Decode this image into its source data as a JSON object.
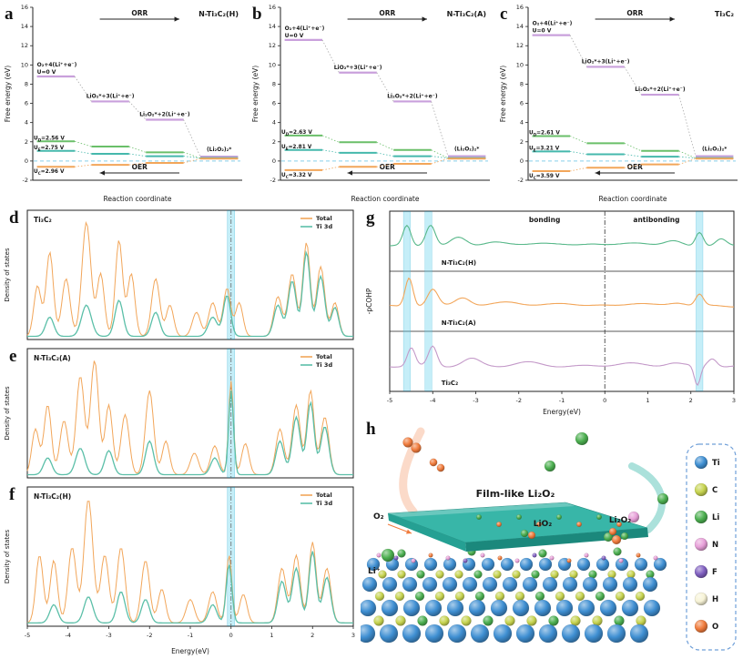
{
  "figure": {
    "letters": [
      "a",
      "b",
      "c",
      "d",
      "e",
      "f",
      "g",
      "h"
    ]
  },
  "chart_data": [
    {
      "panel": "a",
      "type": "step",
      "title": "N-Ti₃C₂(H)",
      "xlabel": "Reaction coordinate",
      "ylabel": "Free energy (eV)",
      "ylim": [
        -2,
        16
      ],
      "yticks": [
        -2,
        0,
        2,
        4,
        6,
        8,
        10,
        12,
        14,
        16
      ],
      "arrows": {
        "top": "ORR",
        "bottom": "OER"
      },
      "states": [
        "O₂+4(Li⁺+e⁻)",
        "LiO₂*+3(Li⁺+e⁻)",
        "Li₂O₂*+2(Li⁺+e⁻)",
        "(Li₂O₂)₂*"
      ],
      "u0_label": "U=0 V",
      "u0": {
        "color": "#c9a0dc",
        "levels": [
          8.8,
          6.2,
          4.3,
          0.45
        ]
      },
      "potentials": [
        {
          "label": "U_D=2.56 V",
          "color": "#6abf69",
          "levels": [
            2.05,
            1.5,
            0.9,
            0.3
          ]
        },
        {
          "label": "U_E=2.75 V",
          "color": "#45b8ac",
          "levels": [
            1.05,
            0.75,
            0.5,
            0.3
          ]
        },
        {
          "label": "U_C=2.96 V",
          "color": "#f2a65a",
          "levels": [
            -0.6,
            -0.4,
            -0.2,
            0.25
          ]
        }
      ],
      "baseline_color": "#9fd8ef"
    },
    {
      "panel": "b",
      "type": "step",
      "title": "N-Ti₃C₂(A)",
      "xlabel": "Reaction coordinate",
      "ylabel": "Free energy (eV)",
      "ylim": [
        -2,
        16
      ],
      "yticks": [
        -2,
        0,
        2,
        4,
        6,
        8,
        10,
        12,
        14,
        16
      ],
      "arrows": {
        "top": "ORR",
        "bottom": "OER"
      },
      "states": [
        "O₂+4(Li⁺+e⁻)",
        "LiO₂*+3(Li⁺+e⁻)",
        "Li₂O₂*+2(Li⁺+e⁻)",
        "(Li₂O₂)₂*"
      ],
      "u0_label": "U=0 V",
      "u0": {
        "color": "#c9a0dc",
        "levels": [
          12.6,
          9.2,
          6.2,
          0.5
        ]
      },
      "potentials": [
        {
          "label": "U_D=2.63 V",
          "color": "#6abf69",
          "levels": [
            2.65,
            1.95,
            1.15,
            0.3
          ]
        },
        {
          "label": "U_E=2.81 V",
          "color": "#45b8ac",
          "levels": [
            1.15,
            0.85,
            0.5,
            0.3
          ]
        },
        {
          "label": "U_C=3.32 V",
          "color": "#f2a65a",
          "levels": [
            -0.95,
            -0.6,
            -0.3,
            0.25
          ]
        }
      ],
      "baseline_color": "#9fd8ef"
    },
    {
      "panel": "c",
      "type": "step",
      "title": "Ti₃C₂",
      "xlabel": "Reaction coordinate",
      "ylabel": "Free energy (eV)",
      "ylim": [
        -2,
        16
      ],
      "yticks": [
        -2,
        0,
        2,
        4,
        6,
        8,
        10,
        12,
        14,
        16
      ],
      "arrows": {
        "top": "ORR",
        "bottom": "OER"
      },
      "states": [
        "O₂+4(Li⁺+e⁻)",
        "LiO₂*+3(Li⁺+e⁻)",
        "Li₂O₂*+2(Li⁺+e⁻)",
        "(Li₂O₂)₂*"
      ],
      "u0_label": "U=0 V",
      "u0": {
        "color": "#c9a0dc",
        "levels": [
          13.1,
          9.8,
          6.9,
          0.5
        ]
      },
      "potentials": [
        {
          "label": "U_D=2.61 V",
          "color": "#6abf69",
          "levels": [
            2.6,
            1.85,
            1.05,
            0.3
          ]
        },
        {
          "label": "U_E=3.21 V",
          "color": "#45b8ac",
          "levels": [
            1.0,
            0.7,
            0.45,
            0.3
          ]
        },
        {
          "label": "U_C=3.59 V",
          "color": "#f2a65a",
          "levels": [
            -1.05,
            -0.7,
            -0.35,
            0.25
          ]
        }
      ],
      "baseline_color": "#9fd8ef"
    },
    {
      "panel": "d",
      "type": "dos",
      "label": "Ti₃C₂",
      "ylabel": "Density of states",
      "xlabel": "Energy(eV)",
      "xlim": [
        -5,
        3
      ],
      "fermi": 0,
      "show_xaxis": false,
      "series": [
        {
          "name": "Total",
          "color": "#f2a65a",
          "peaks": [
            [
              -4.75,
              0.42,
              0.09
            ],
            [
              -4.45,
              0.7,
              0.09
            ],
            [
              -4.05,
              0.48,
              0.1
            ],
            [
              -3.55,
              0.95,
              0.11
            ],
            [
              -3.2,
              0.52,
              0.09
            ],
            [
              -2.75,
              0.8,
              0.09
            ],
            [
              -2.45,
              0.52,
              0.09
            ],
            [
              -1.85,
              0.48,
              0.1
            ],
            [
              -1.5,
              0.26,
              0.09
            ],
            [
              -0.85,
              0.2,
              0.1
            ],
            [
              -0.45,
              0.28,
              0.1
            ],
            [
              -0.1,
              0.4,
              0.09
            ],
            [
              0.2,
              0.28,
              0.09
            ],
            [
              1.15,
              0.33,
              0.1
            ],
            [
              1.5,
              0.52,
              0.1
            ],
            [
              1.85,
              0.78,
              0.09
            ],
            [
              2.2,
              0.58,
              0.1
            ],
            [
              2.55,
              0.28,
              0.09
            ]
          ]
        },
        {
          "name": "Ti 3d",
          "color": "#5bbfa8",
          "peaks": [
            [
              -4.45,
              0.16,
              0.1
            ],
            [
              -3.55,
              0.26,
              0.12
            ],
            [
              -2.75,
              0.3,
              0.1
            ],
            [
              -1.85,
              0.2,
              0.1
            ],
            [
              -0.45,
              0.16,
              0.11
            ],
            [
              -0.1,
              0.34,
              0.09
            ],
            [
              1.15,
              0.26,
              0.1
            ],
            [
              1.5,
              0.46,
              0.1
            ],
            [
              1.85,
              0.7,
              0.09
            ],
            [
              2.2,
              0.5,
              0.1
            ],
            [
              2.55,
              0.24,
              0.09
            ]
          ]
        }
      ]
    },
    {
      "panel": "e",
      "type": "dos",
      "label": "N-Ti₃C₂(A)",
      "ylabel": "Density of states",
      "xlabel": "Energy(eV)",
      "xlim": [
        -5,
        3
      ],
      "fermi": 0,
      "show_xaxis": false,
      "series": [
        {
          "name": "Total",
          "color": "#f2a65a",
          "peaks": [
            [
              -4.8,
              0.38,
              0.09
            ],
            [
              -4.5,
              0.58,
              0.09
            ],
            [
              -4.1,
              0.45,
              0.1
            ],
            [
              -3.7,
              0.82,
              0.1
            ],
            [
              -3.35,
              0.95,
              0.1
            ],
            [
              -3.0,
              0.58,
              0.09
            ],
            [
              -2.6,
              0.5,
              0.1
            ],
            [
              -2.0,
              0.7,
              0.1
            ],
            [
              -1.6,
              0.28,
              0.09
            ],
            [
              -0.9,
              0.18,
              0.1
            ],
            [
              -0.4,
              0.24,
              0.1
            ],
            [
              0.0,
              0.78,
              0.06
            ],
            [
              0.35,
              0.26,
              0.09
            ],
            [
              1.2,
              0.38,
              0.1
            ],
            [
              1.6,
              0.58,
              0.1
            ],
            [
              1.95,
              0.7,
              0.09
            ],
            [
              2.3,
              0.48,
              0.1
            ]
          ]
        },
        {
          "name": "Ti 3d",
          "color": "#5bbfa8",
          "peaks": [
            [
              -4.5,
              0.14,
              0.1
            ],
            [
              -3.7,
              0.22,
              0.11
            ],
            [
              -3.0,
              0.2,
              0.1
            ],
            [
              -2.0,
              0.28,
              0.1
            ],
            [
              -0.4,
              0.14,
              0.1
            ],
            [
              0.0,
              0.7,
              0.06
            ],
            [
              1.2,
              0.28,
              0.1
            ],
            [
              1.6,
              0.48,
              0.1
            ],
            [
              1.95,
              0.6,
              0.09
            ],
            [
              2.3,
              0.4,
              0.1
            ]
          ]
        }
      ]
    },
    {
      "panel": "f",
      "type": "dos",
      "label": "N-Ti₃C₂(H)",
      "ylabel": "Density of states",
      "xlabel": "Energy(eV)",
      "xlim": [
        -5,
        3
      ],
      "fermi": 0,
      "show_xaxis": true,
      "xticks": [
        -5,
        -4,
        -3,
        -2,
        -1,
        0,
        1,
        2,
        3
      ],
      "series": [
        {
          "name": "Total",
          "color": "#f2a65a",
          "peaks": [
            [
              -4.7,
              0.52,
              0.09
            ],
            [
              -4.35,
              0.48,
              0.09
            ],
            [
              -3.9,
              0.58,
              0.1
            ],
            [
              -3.5,
              0.95,
              0.11
            ],
            [
              -3.1,
              0.52,
              0.1
            ],
            [
              -2.7,
              0.58,
              0.1
            ],
            [
              -2.1,
              0.48,
              0.1
            ],
            [
              -1.7,
              0.26,
              0.09
            ],
            [
              -1.0,
              0.18,
              0.1
            ],
            [
              -0.45,
              0.24,
              0.1
            ],
            [
              -0.05,
              0.52,
              0.07
            ],
            [
              0.3,
              0.22,
              0.09
            ],
            [
              1.25,
              0.42,
              0.1
            ],
            [
              1.6,
              0.52,
              0.1
            ],
            [
              2.0,
              0.62,
              0.09
            ],
            [
              2.35,
              0.42,
              0.1
            ]
          ]
        },
        {
          "name": "Ti 3d",
          "color": "#5bbfa8",
          "peaks": [
            [
              -4.35,
              0.14,
              0.1
            ],
            [
              -3.5,
              0.2,
              0.11
            ],
            [
              -2.7,
              0.24,
              0.1
            ],
            [
              -2.1,
              0.18,
              0.1
            ],
            [
              -0.45,
              0.14,
              0.1
            ],
            [
              -0.05,
              0.45,
              0.07
            ],
            [
              1.25,
              0.32,
              0.1
            ],
            [
              1.6,
              0.42,
              0.1
            ],
            [
              2.0,
              0.55,
              0.09
            ],
            [
              2.35,
              0.35,
              0.1
            ]
          ]
        }
      ]
    },
    {
      "panel": "g",
      "type": "cohp",
      "ylabel": "-pCOHP",
      "xlabel": "Energy(eV)",
      "xlim": [
        -5,
        3
      ],
      "xticks": [
        -5,
        -4,
        -3,
        -2,
        -1,
        0,
        1,
        2,
        3
      ],
      "bonding_label": "bonding",
      "antibonding_label": "antibonding",
      "highlights": [
        -4.6,
        -4.1,
        2.2
      ],
      "bands": [
        {
          "label": "N-Ti₃C₂(H)",
          "color": "#58b88a",
          "peaks": [
            [
              -4.6,
              0.55,
              0.09
            ],
            [
              -4.05,
              0.6,
              0.11
            ],
            [
              -3.4,
              0.22,
              0.18
            ],
            [
              -2.6,
              0.12,
              0.25
            ],
            [
              -1.5,
              0.1,
              0.3
            ],
            [
              -0.3,
              0.08,
              0.25
            ],
            [
              0.8,
              0.1,
              0.3
            ],
            [
              1.6,
              0.12,
              0.2
            ],
            [
              2.2,
              0.4,
              0.09
            ],
            [
              2.7,
              0.18,
              0.12
            ]
          ]
        },
        {
          "label": "N-Ti₃C₂(A)",
          "color": "#f2a65a",
          "peaks": [
            [
              -4.55,
              0.8,
              0.09
            ],
            [
              -4.0,
              0.45,
              0.12
            ],
            [
              -3.3,
              0.25,
              0.18
            ],
            [
              -2.2,
              0.12,
              0.3
            ],
            [
              -0.9,
              0.08,
              0.3
            ],
            [
              0.7,
              0.08,
              0.3
            ],
            [
              1.7,
              0.1,
              0.2
            ],
            [
              2.2,
              0.32,
              0.09
            ]
          ]
        },
        {
          "label": "Ti₃C₂",
          "color": "#c49ac9",
          "peaks": [
            [
              -4.5,
              0.5,
              0.09
            ],
            [
              -4.0,
              0.55,
              0.1
            ],
            [
              -3.1,
              0.2,
              0.2
            ],
            [
              -1.8,
              0.1,
              0.3
            ],
            [
              0.5,
              0.08,
              0.3
            ],
            [
              1.6,
              0.1,
              0.2
            ],
            [
              2.15,
              -0.55,
              0.07
            ],
            [
              2.5,
              0.22,
              0.1
            ]
          ]
        }
      ]
    },
    {
      "panel": "h",
      "type": "schematic",
      "labels": {
        "film": "Film-like Li₂O₂",
        "o2": "O₂",
        "li": "Li⁺",
        "lio2": "LiO₂",
        "li2o2": "Li₂O₂"
      },
      "legend": [
        {
          "label": "Ti",
          "color": "#3f8fd2"
        },
        {
          "label": "C",
          "color": "#c6d34f"
        },
        {
          "label": "Li",
          "color": "#4caf50"
        },
        {
          "label": "N",
          "color": "#e79fd8"
        },
        {
          "label": "F",
          "color": "#8060c0"
        },
        {
          "label": "H",
          "color": "#f7f3d6"
        },
        {
          "label": "O",
          "color": "#f07b3c"
        }
      ]
    }
  ]
}
